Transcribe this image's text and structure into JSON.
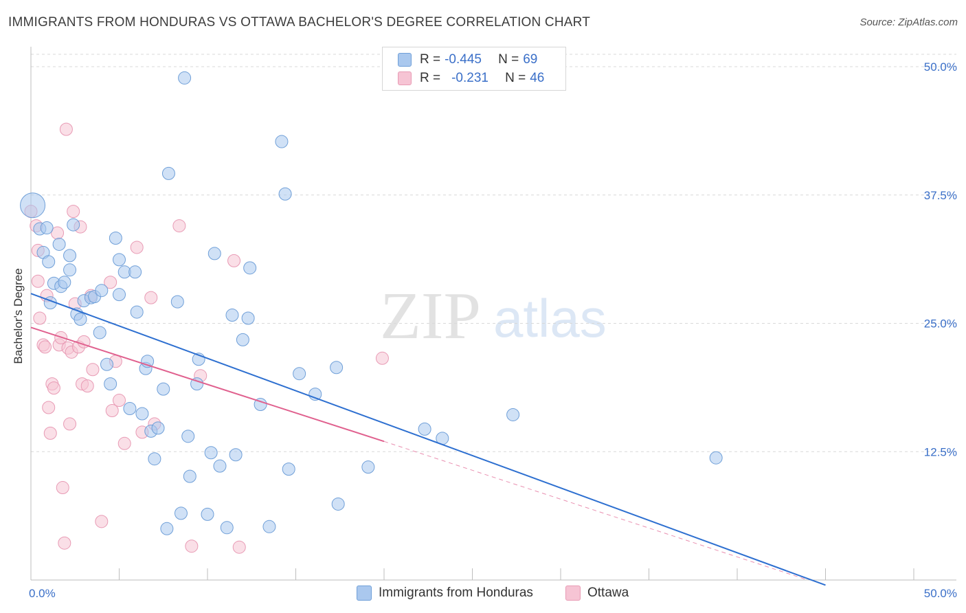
{
  "title": "IMMIGRANTS FROM HONDURAS VS OTTAWA BACHELOR'S DEGREE CORRELATION CHART",
  "source": "Source: ZipAtlas.com",
  "watermark": {
    "zip": "ZIP",
    "atlas": "atlas"
  },
  "legend": {
    "series1": {
      "r_label": "R =",
      "r_value": "-0.445",
      "n_label": "N =",
      "n_value": "69"
    },
    "series2": {
      "r_label": "R =",
      "r_value": "-0.231",
      "n_label": "N =",
      "n_value": "46"
    }
  },
  "bottom_legend": {
    "series1": "Immigrants from Honduras",
    "series2": "Ottawa"
  },
  "colors": {
    "blue_fill": "#aac8ee",
    "blue_stroke": "#6f9fd8",
    "blue_line": "#2d6fd0",
    "pink_fill": "#f6c4d4",
    "pink_stroke": "#e89ab4",
    "pink_line": "#e0608e",
    "axis_label": "#3a6fc8",
    "grid": "#d8d8d8"
  },
  "chart_data": {
    "type": "scatter",
    "title": "IMMIGRANTS FROM HONDURAS VS OTTAWA BACHELOR'S DEGREE CORRELATION CHART",
    "xlabel": "",
    "ylabel": "Bachelor's Degree",
    "xlim": [
      0,
      50
    ],
    "ylim": [
      0,
      52
    ],
    "x_tick_labels": [
      {
        "value": 0,
        "label": "0.0%"
      },
      {
        "value": 50,
        "label": "50.0%"
      }
    ],
    "y_tick_labels": [
      {
        "value": 12.5,
        "label": "12.5%"
      },
      {
        "value": 25,
        "label": "25.0%"
      },
      {
        "value": 37.5,
        "label": "37.5%"
      },
      {
        "value": 50,
        "label": "50.0%"
      }
    ],
    "grid": true,
    "series": [
      {
        "name": "Immigrants from Honduras",
        "color": "blue",
        "trend": {
          "x0": 0,
          "y0": 27.9,
          "x1": 45,
          "y1": -0.5
        },
        "points": [
          {
            "x": 0.1,
            "y": 36.5,
            "big": true
          },
          {
            "x": 0.5,
            "y": 34.2
          },
          {
            "x": 0.7,
            "y": 31.9
          },
          {
            "x": 0.9,
            "y": 34.3
          },
          {
            "x": 1.0,
            "y": 31.0
          },
          {
            "x": 1.1,
            "y": 27.0
          },
          {
            "x": 1.3,
            "y": 28.9
          },
          {
            "x": 1.6,
            "y": 32.7
          },
          {
            "x": 1.7,
            "y": 28.6
          },
          {
            "x": 1.9,
            "y": 29.0
          },
          {
            "x": 2.2,
            "y": 30.2
          },
          {
            "x": 2.2,
            "y": 31.6
          },
          {
            "x": 2.4,
            "y": 34.6
          },
          {
            "x": 2.6,
            "y": 25.9
          },
          {
            "x": 2.8,
            "y": 25.4
          },
          {
            "x": 3.0,
            "y": 27.2
          },
          {
            "x": 3.4,
            "y": 27.5
          },
          {
            "x": 3.6,
            "y": 27.6
          },
          {
            "x": 3.9,
            "y": 24.1
          },
          {
            "x": 4.0,
            "y": 28.2
          },
          {
            "x": 4.3,
            "y": 21.0
          },
          {
            "x": 4.5,
            "y": 19.1
          },
          {
            "x": 4.8,
            "y": 33.3
          },
          {
            "x": 5.0,
            "y": 27.8
          },
          {
            "x": 5.0,
            "y": 31.2
          },
          {
            "x": 5.3,
            "y": 30.0
          },
          {
            "x": 5.6,
            "y": 16.7
          },
          {
            "x": 5.9,
            "y": 30.0
          },
          {
            "x": 6.0,
            "y": 26.1
          },
          {
            "x": 6.3,
            "y": 16.2
          },
          {
            "x": 6.5,
            "y": 20.6
          },
          {
            "x": 6.6,
            "y": 21.3
          },
          {
            "x": 6.8,
            "y": 14.5
          },
          {
            "x": 7.0,
            "y": 11.8
          },
          {
            "x": 7.2,
            "y": 14.8
          },
          {
            "x": 7.5,
            "y": 18.6
          },
          {
            "x": 7.7,
            "y": 5.0
          },
          {
            "x": 7.8,
            "y": 39.6
          },
          {
            "x": 8.3,
            "y": 27.1
          },
          {
            "x": 8.5,
            "y": 6.5
          },
          {
            "x": 8.7,
            "y": 48.9
          },
          {
            "x": 8.9,
            "y": 14.0
          },
          {
            "x": 9.0,
            "y": 10.1
          },
          {
            "x": 9.4,
            "y": 19.1
          },
          {
            "x": 9.5,
            "y": 21.5
          },
          {
            "x": 10.0,
            "y": 6.4
          },
          {
            "x": 10.2,
            "y": 12.4
          },
          {
            "x": 10.4,
            "y": 31.8
          },
          {
            "x": 10.7,
            "y": 11.1
          },
          {
            "x": 11.1,
            "y": 5.1
          },
          {
            "x": 11.4,
            "y": 25.8
          },
          {
            "x": 11.6,
            "y": 12.2
          },
          {
            "x": 12.0,
            "y": 23.4
          },
          {
            "x": 12.3,
            "y": 25.5
          },
          {
            "x": 12.4,
            "y": 30.4
          },
          {
            "x": 13.0,
            "y": 17.1
          },
          {
            "x": 13.5,
            "y": 5.2
          },
          {
            "x": 14.2,
            "y": 42.7
          },
          {
            "x": 14.4,
            "y": 37.6
          },
          {
            "x": 14.6,
            "y": 10.8
          },
          {
            "x": 15.2,
            "y": 20.1
          },
          {
            "x": 16.1,
            "y": 18.1
          },
          {
            "x": 17.3,
            "y": 20.7
          },
          {
            "x": 17.4,
            "y": 7.4
          },
          {
            "x": 19.1,
            "y": 11.0
          },
          {
            "x": 22.3,
            "y": 14.7
          },
          {
            "x": 23.3,
            "y": 13.8
          },
          {
            "x": 27.3,
            "y": 16.1
          },
          {
            "x": 38.8,
            "y": 11.9
          }
        ]
      },
      {
        "name": "Ottawa",
        "color": "pink",
        "trend": {
          "x0": 0,
          "y0": 24.6,
          "x1": 20,
          "y1": 13.5,
          "dash_to": {
            "x": 44,
            "y": 0
          }
        },
        "points": [
          {
            "x": 0.0,
            "y": 35.9
          },
          {
            "x": 0.3,
            "y": 34.5
          },
          {
            "x": 0.4,
            "y": 32.1
          },
          {
            "x": 0.4,
            "y": 29.1
          },
          {
            "x": 0.5,
            "y": 25.5
          },
          {
            "x": 0.7,
            "y": 22.9
          },
          {
            "x": 0.8,
            "y": 22.7
          },
          {
            "x": 0.9,
            "y": 27.7
          },
          {
            "x": 1.0,
            "y": 16.8
          },
          {
            "x": 1.1,
            "y": 14.3
          },
          {
            "x": 1.2,
            "y": 19.1
          },
          {
            "x": 1.3,
            "y": 18.7
          },
          {
            "x": 1.5,
            "y": 33.8
          },
          {
            "x": 1.6,
            "y": 22.9
          },
          {
            "x": 1.7,
            "y": 23.6
          },
          {
            "x": 1.8,
            "y": 9.0
          },
          {
            "x": 1.9,
            "y": 3.6
          },
          {
            "x": 2.0,
            "y": 43.9
          },
          {
            "x": 2.1,
            "y": 22.6
          },
          {
            "x": 2.2,
            "y": 15.2
          },
          {
            "x": 2.3,
            "y": 22.2
          },
          {
            "x": 2.4,
            "y": 35.9
          },
          {
            "x": 2.5,
            "y": 26.9
          },
          {
            "x": 2.7,
            "y": 22.7
          },
          {
            "x": 2.8,
            "y": 34.4
          },
          {
            "x": 2.9,
            "y": 19.1
          },
          {
            "x": 3.0,
            "y": 23.2
          },
          {
            "x": 3.2,
            "y": 18.9
          },
          {
            "x": 3.4,
            "y": 27.7
          },
          {
            "x": 3.5,
            "y": 20.5
          },
          {
            "x": 4.0,
            "y": 5.7
          },
          {
            "x": 4.5,
            "y": 29.0
          },
          {
            "x": 4.6,
            "y": 16.5
          },
          {
            "x": 4.8,
            "y": 21.3
          },
          {
            "x": 5.0,
            "y": 17.5
          },
          {
            "x": 5.3,
            "y": 13.3
          },
          {
            "x": 6.0,
            "y": 32.4
          },
          {
            "x": 6.3,
            "y": 14.4
          },
          {
            "x": 6.8,
            "y": 27.5
          },
          {
            "x": 7.0,
            "y": 15.2
          },
          {
            "x": 8.4,
            "y": 34.5
          },
          {
            "x": 9.1,
            "y": 3.3
          },
          {
            "x": 9.6,
            "y": 19.9
          },
          {
            "x": 11.5,
            "y": 31.1
          },
          {
            "x": 11.8,
            "y": 3.2
          },
          {
            "x": 19.9,
            "y": 21.6
          }
        ]
      }
    ]
  }
}
